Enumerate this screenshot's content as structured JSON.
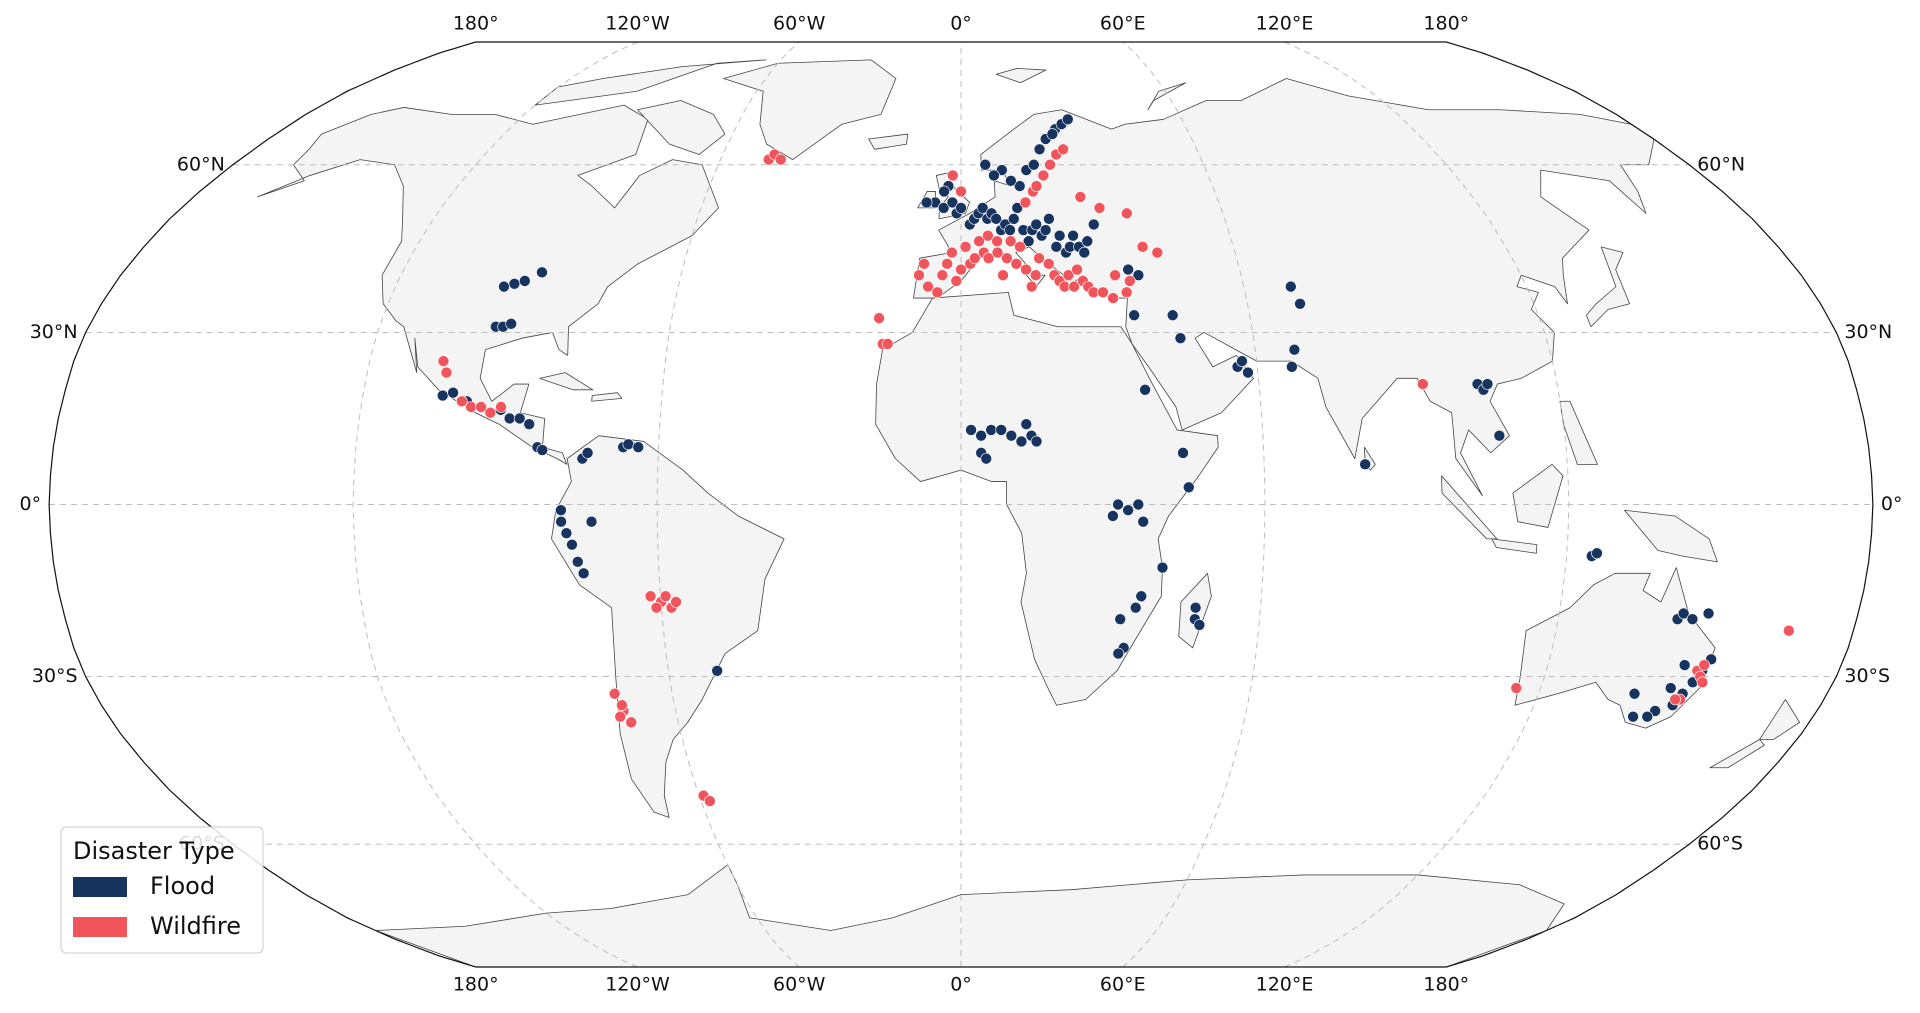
{
  "map_data": {
    "type": "scatter-map",
    "projection": "robinson",
    "grid": true,
    "legend_position": "lower left",
    "legend_title": "Disaster Type",
    "meridians": [
      {
        "value": -180,
        "label": "180°"
      },
      {
        "value": -120,
        "label": "120°W"
      },
      {
        "value": -60,
        "label": "60°W"
      },
      {
        "value": 0,
        "label": "0°"
      },
      {
        "value": 60,
        "label": "60°E"
      },
      {
        "value": 120,
        "label": "120°E"
      },
      {
        "value": 180,
        "label": "180°"
      }
    ],
    "parallels": [
      {
        "value": 60,
        "label": "60°N"
      },
      {
        "value": 30,
        "label": "30°N"
      },
      {
        "value": 0,
        "label": "0°"
      },
      {
        "value": -30,
        "label": "30°S"
      },
      {
        "value": -60,
        "label": "60°S"
      }
    ],
    "series": [
      {
        "name": "Flood",
        "color": "#17335f",
        "lon": [
          -97,
          -95,
          -93,
          -90,
          -96,
          -94.5,
          -93,
          -104,
          -102,
          -99,
          -92,
          -90,
          -88,
          -86,
          -84,
          -83,
          -75,
          -74,
          -67,
          -66,
          -64,
          -79,
          -79,
          -78,
          -77,
          -76,
          -75,
          -73,
          -50,
          -6,
          -4,
          -2,
          -1,
          0,
          2,
          3,
          4,
          5,
          6,
          7,
          8,
          9,
          10,
          11,
          12,
          13,
          14,
          15,
          16,
          17,
          18,
          19,
          20,
          21,
          22,
          23,
          24,
          25,
          26,
          27,
          28,
          30,
          14,
          12,
          16,
          18,
          20,
          22,
          25,
          27,
          29,
          24,
          10,
          8,
          6,
          -3,
          -4,
          -8,
          36,
          38,
          36,
          44,
          45,
          56,
          57,
          58,
          67,
          68,
          70,
          71,
          104,
          105,
          106,
          107,
          80,
          125,
          126,
          2,
          4,
          6,
          8,
          10,
          12,
          4,
          5,
          14,
          15,
          13,
          37,
          44,
          45,
          31,
          33,
          35,
          30,
          36,
          32,
          35,
          36,
          33,
          32,
          40,
          47,
          47,
          48,
          144,
          145,
          147,
          150,
          153,
          152,
          151,
          150,
          149,
          146,
          145,
          142,
          140,
          147,
          148
        ],
        "lat": [
          38,
          38.5,
          39,
          40.5,
          31,
          31,
          31.5,
          19,
          19.5,
          18,
          16.5,
          15,
          15,
          14,
          10,
          9.5,
          8,
          9,
          10,
          10.5,
          10,
          -1,
          -3,
          -5,
          -7,
          -10,
          -12,
          -3,
          -29,
          53,
          52,
          53,
          51,
          52,
          49,
          50,
          51,
          52,
          50,
          51,
          50,
          48,
          49,
          48,
          50,
          52,
          48,
          46,
          48,
          49,
          47,
          48,
          50,
          45,
          47,
          44,
          45,
          47,
          45,
          44,
          46,
          49,
          56,
          57,
          59,
          60,
          63,
          65,
          67,
          68,
          69,
          66,
          59,
          58,
          60,
          56,
          55,
          53,
          41,
          40,
          33,
          33,
          29,
          24,
          25,
          23,
          24,
          27,
          38,
          35,
          21,
          20,
          21,
          12,
          7,
          -9,
          -8.5,
          13,
          12,
          13,
          13,
          12,
          11,
          9,
          8,
          12,
          11,
          14,
          20,
          9,
          3,
          0,
          -1,
          0,
          -2,
          -3,
          -20,
          -18,
          -16,
          -25,
          -26,
          -11,
          -18,
          -20,
          -21,
          -20,
          -19,
          -20,
          -19,
          -27,
          -29,
          -31,
          -33,
          -35,
          -36,
          -37,
          -37,
          -33,
          -32,
          -28
        ]
      },
      {
        "name": "Wildfire",
        "color": "#f2545b",
        "lon": [
          -48,
          -47,
          -45,
          -17,
          -16,
          -15,
          -105,
          -104,
          -100,
          -98,
          -96,
          -94,
          -92,
          -62,
          -60,
          -58,
          -61,
          -59,
          -57,
          -72,
          -71,
          -72,
          -70,
          -71,
          -59,
          -58,
          -9,
          -8,
          -7,
          -5,
          -4,
          -3,
          -1,
          0,
          2,
          3,
          5,
          6,
          8,
          9,
          10,
          12,
          14,
          15,
          16,
          17,
          19,
          20,
          21,
          22,
          23,
          24,
          25,
          26,
          27,
          28,
          30,
          32,
          33,
          35,
          36,
          6,
          4,
          1,
          -2,
          8,
          11,
          13,
          15,
          17,
          20,
          22,
          24,
          26,
          -2,
          0,
          18,
          28,
          32,
          38,
          40,
          43,
          93,
          115,
          151,
          152,
          153,
          150,
          149,
          152,
          167
        ],
        "lat": [
          61,
          62,
          61,
          32.5,
          28,
          28,
          25,
          23,
          18,
          17,
          17,
          16,
          17,
          -16,
          -17,
          -18,
          -18,
          -16,
          -17,
          -33,
          -36,
          -37,
          -38,
          -35,
          -51,
          -52,
          40,
          42,
          38,
          37,
          40,
          42,
          39,
          41,
          42,
          43,
          44,
          43,
          44,
          40,
          43,
          42,
          41,
          38,
          40,
          43,
          42,
          40,
          39,
          38,
          40,
          38,
          41,
          39,
          38,
          37,
          37,
          36,
          40,
          37,
          39,
          47,
          46,
          45,
          44,
          46,
          46,
          45,
          53,
          55,
          58,
          60,
          62,
          63,
          58,
          55,
          56,
          54,
          52,
          51,
          45,
          44,
          21,
          -32,
          -29,
          -30,
          -31,
          -34,
          -34,
          -28,
          -22
        ]
      }
    ]
  }
}
